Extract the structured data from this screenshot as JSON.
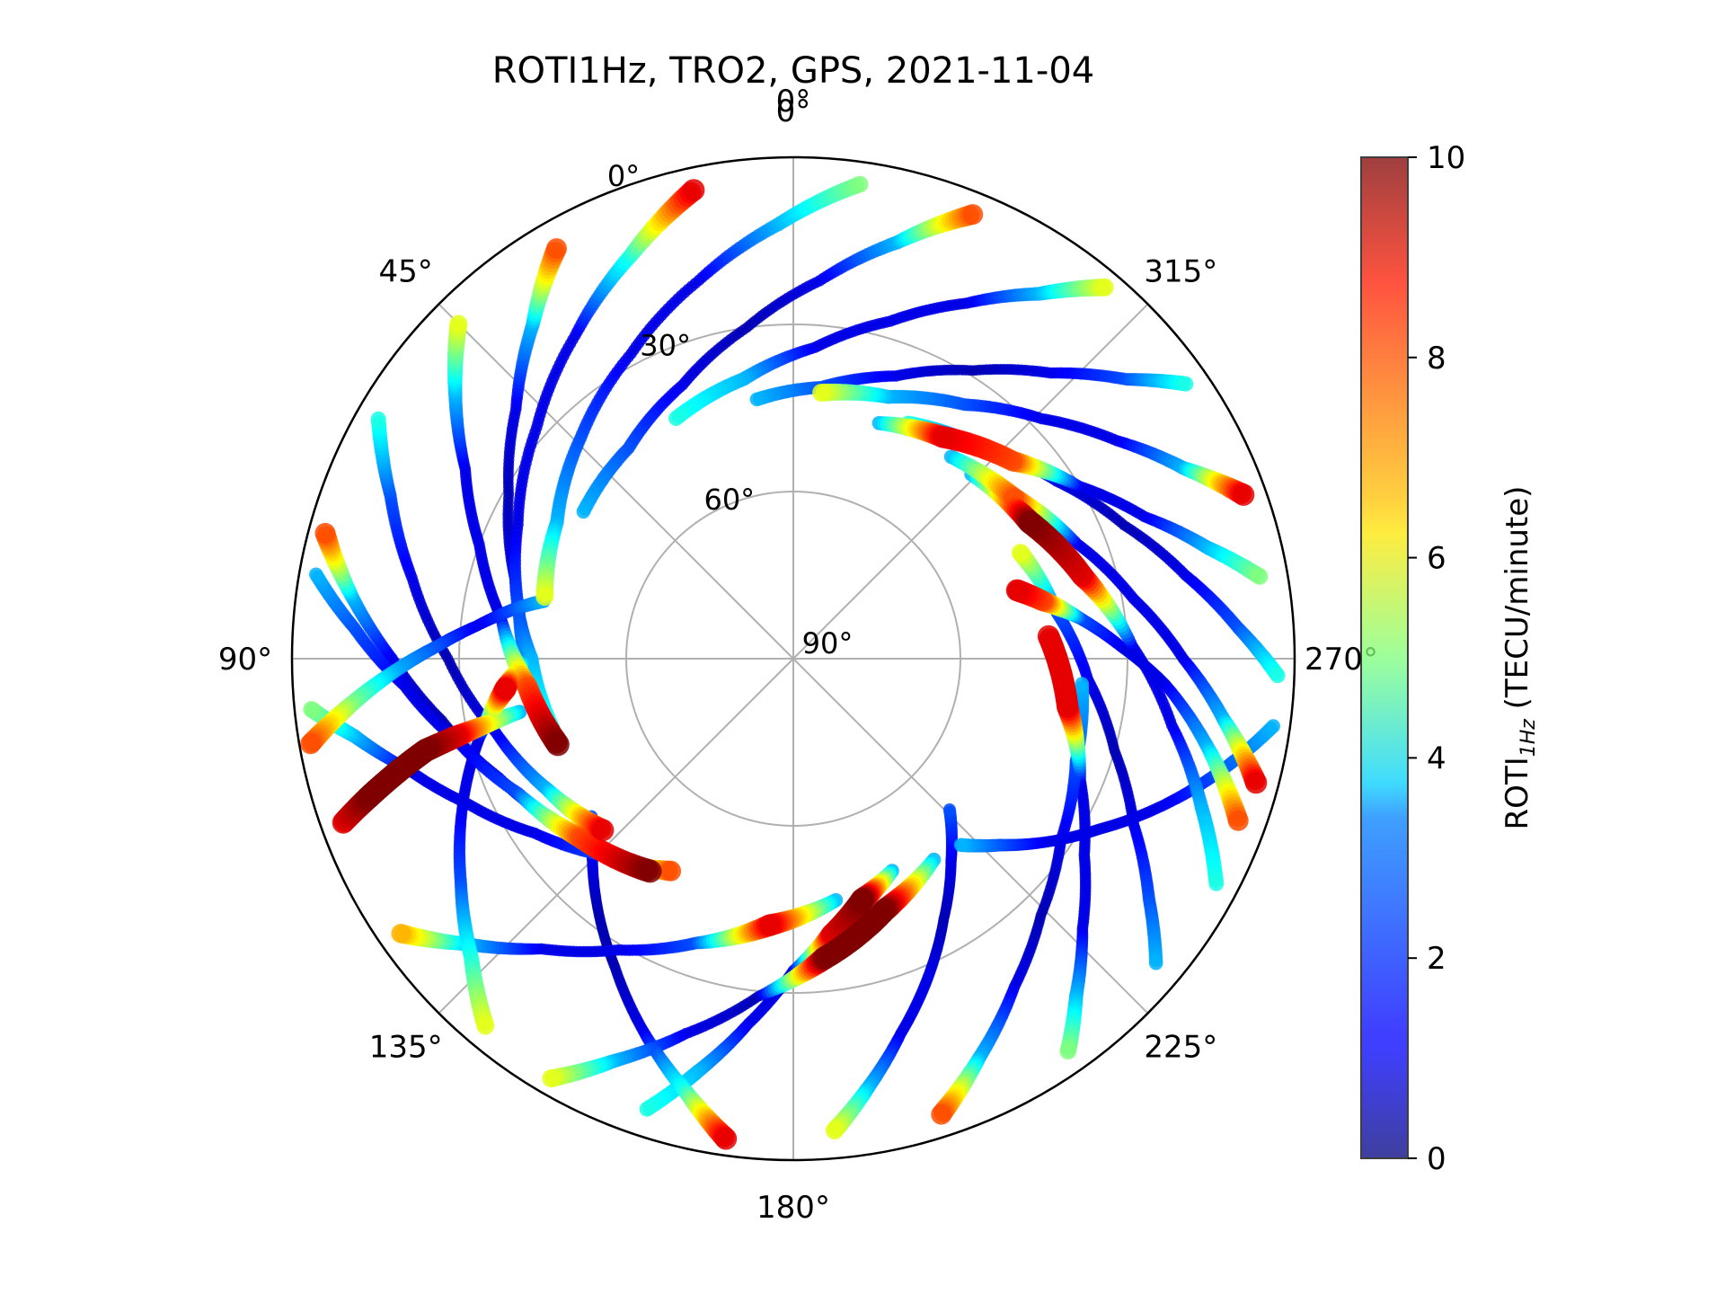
{
  "chart_data": {
    "type": "scatter",
    "projection": "polar",
    "title": "ROTI1Hz, TRO2, GPS, 2021-11-04",
    "azimuth_axis": {
      "direction": "counter-clockwise",
      "zero_location": "top",
      "ticks": [
        0,
        45,
        90,
        135,
        180,
        225,
        270,
        315
      ],
      "tick_labels": [
        "0°",
        "45°",
        "90°",
        "135°",
        "180°",
        "225°",
        "270°",
        "315°"
      ],
      "top_label": "0°"
    },
    "elevation_axis": {
      "range": [
        0,
        90
      ],
      "center_value": 90,
      "ticks": [
        30,
        60,
        90
      ],
      "tick_labels": [
        "30°",
        "60°",
        "90°"
      ],
      "zero_label": "0°"
    },
    "grid": true,
    "colorbar": {
      "label_main": "ROTI",
      "label_sub": "1Hz",
      "label_unit": " (TECU/minute)",
      "colormap": "jet",
      "range": [
        0,
        10
      ],
      "ticks": [
        0,
        2,
        4,
        6,
        8,
        10
      ],
      "tick_labels": [
        "0",
        "2",
        "4",
        "6",
        "8",
        "10"
      ],
      "location": "right"
    },
    "note": "satellite tracks: azimuth (deg), elevation (deg), ROTI value approximated from image",
    "tracks": [
      {
        "az": [
          185,
          190,
          196,
          203,
          210,
          218,
          226
        ],
        "el": [
          5,
          12,
          20,
          28,
          36,
          44,
          51
        ],
        "roti": [
          6,
          3,
          1,
          1,
          0.5,
          1,
          2
        ]
      },
      {
        "az": [
          172,
          166,
          158,
          150,
          142,
          135,
          128
        ],
        "el": [
          3,
          10,
          18,
          26,
          33,
          39,
          44
        ],
        "roti": [
          9,
          4,
          1,
          0.5,
          0.5,
          1,
          2
        ]
      },
      {
        "az": [
          162,
          167,
          173,
          180,
          188,
          196,
          205
        ],
        "el": [
          5,
          14,
          24,
          34,
          40,
          45,
          48
        ],
        "roti": [
          4,
          3,
          1,
          1,
          9,
          10,
          3
        ]
      },
      {
        "az": [
          198,
          205,
          214,
          224,
          236,
          250,
          265
        ],
        "el": [
          4,
          11,
          19,
          26,
          32,
          36,
          38
        ],
        "roti": [
          8,
          3,
          1,
          0.5,
          1,
          2,
          3
        ]
      },
      {
        "az": [
          140,
          133,
          124,
          114,
          104,
          96,
          90
        ],
        "el": [
          4,
          11,
          18,
          25,
          32,
          38,
          42
        ],
        "roti": [
          6,
          4,
          2,
          1,
          1,
          9,
          2
        ]
      },
      {
        "az": [
          110,
          108,
          106,
          104,
          103,
          102,
          101
        ],
        "el": [
          4,
          10,
          16,
          22,
          28,
          34,
          40
        ],
        "roti": [
          9,
          10,
          10,
          10,
          9,
          6,
          3
        ]
      },
      {
        "az": [
          96,
          100,
          106,
          114,
          124,
          136,
          150
        ],
        "el": [
          3,
          10,
          18,
          26,
          34,
          41,
          46
        ],
        "roti": [
          5,
          3,
          1,
          1,
          1,
          2,
          8
        ]
      },
      {
        "az": [
          75,
          82,
          90,
          100,
          112,
          126,
          142
        ],
        "el": [
          3,
          10,
          18,
          26,
          33,
          39,
          43
        ],
        "roti": [
          8,
          3,
          1,
          0.5,
          1,
          2,
          4
        ]
      },
      {
        "az": [
          60,
          68,
          78,
          90,
          104,
          118,
          132
        ],
        "el": [
          4,
          12,
          20,
          28,
          35,
          40,
          44
        ],
        "roti": [
          4,
          2,
          1,
          0.5,
          1,
          3,
          9
        ]
      },
      {
        "az": [
          45,
          52,
          60,
          70,
          82,
          96,
          110
        ],
        "el": [
          5,
          13,
          22,
          30,
          37,
          42,
          45
        ],
        "roti": [
          6,
          3,
          1,
          1,
          1,
          8,
          10
        ]
      },
      {
        "az": [
          30,
          38,
          48,
          60,
          74,
          90,
          106
        ],
        "el": [
          5,
          14,
          23,
          31,
          38,
          43,
          45
        ],
        "roti": [
          8,
          3,
          1,
          0.5,
          1,
          3,
          4
        ]
      },
      {
        "az": [
          12,
          22,
          34,
          48,
          64,
          80,
          96
        ],
        "el": [
          4,
          12,
          20,
          28,
          35,
          40,
          43
        ],
        "roti": [
          9,
          4,
          1,
          1,
          1,
          2,
          3
        ]
      },
      {
        "az": [
          352,
          2,
          14,
          28,
          44,
          60,
          76
        ],
        "el": [
          4,
          12,
          20,
          28,
          35,
          41,
          44
        ],
        "roti": [
          5,
          3,
          1,
          1,
          2,
          3,
          6
        ]
      },
      {
        "az": [
          338,
          346,
          356,
          8,
          22,
          38,
          55
        ],
        "el": [
          4,
          13,
          22,
          30,
          37,
          42,
          44
        ],
        "roti": [
          8,
          3,
          1,
          0.5,
          1,
          2,
          3
        ]
      },
      {
        "az": [
          320,
          326,
          334,
          344,
          356,
          10,
          26
        ],
        "el": [
          3,
          11,
          19,
          27,
          34,
          39,
          42
        ],
        "roti": [
          6,
          3,
          1,
          1,
          1,
          3,
          4
        ]
      },
      {
        "az": [
          305,
          310,
          318,
          328,
          340,
          354,
          8
        ],
        "el": [
          4,
          12,
          21,
          29,
          36,
          41,
          43
        ],
        "roti": [
          4,
          2,
          1,
          0.5,
          1,
          2,
          3
        ]
      },
      {
        "az": [
          290,
          296,
          304,
          314,
          326,
          340,
          354
        ],
        "el": [
          4,
          12,
          20,
          28,
          35,
          40,
          42
        ],
        "roti": [
          9,
          3,
          1,
          1,
          2,
          3,
          6
        ]
      },
      {
        "az": [
          280,
          285,
          292,
          301,
          312,
          326,
          340
        ],
        "el": [
          5,
          13,
          22,
          30,
          37,
          42,
          45
        ],
        "roti": [
          5,
          3,
          1,
          1,
          8,
          9,
          3
        ]
      },
      {
        "az": [
          268,
          274,
          282,
          292,
          304,
          318,
          334
        ],
        "el": [
          3,
          10,
          18,
          26,
          33,
          39,
          43
        ],
        "roti": [
          4,
          2,
          1,
          0.5,
          1,
          2,
          4
        ]
      },
      {
        "az": [
          255,
          262,
          270,
          280,
          292,
          306,
          322
        ],
        "el": [
          4,
          12,
          20,
          28,
          35,
          41,
          44
        ],
        "roti": [
          9,
          3,
          1,
          1,
          1,
          8,
          3
        ]
      },
      {
        "az": [
          242,
          250,
          260,
          272,
          286,
          300,
          316
        ],
        "el": [
          4,
          12,
          21,
          29,
          36,
          41,
          44
        ],
        "roti": [
          4,
          3,
          1,
          1,
          9,
          10,
          3
        ]
      },
      {
        "az": [
          230,
          236,
          244,
          254,
          266,
          280,
          295
        ],
        "el": [
          5,
          13,
          22,
          30,
          37,
          42,
          45
        ],
        "roti": [
          3,
          2,
          1,
          0.5,
          1,
          2,
          6
        ]
      },
      {
        "az": [
          215,
          220,
          227,
          236,
          247,
          260,
          275
        ],
        "el": [
          4,
          11,
          19,
          27,
          34,
          40,
          44
        ],
        "roti": [
          5,
          3,
          1,
          1,
          1,
          9,
          9
        ]
      },
      {
        "az": [
          150,
          156,
          164,
          174,
          186,
          200,
          215
        ],
        "el": [
          3,
          11,
          20,
          29,
          36,
          42,
          46
        ],
        "roti": [
          6,
          3,
          1,
          0.5,
          10,
          10,
          3
        ]
      },
      {
        "az": [
          125,
          131,
          139,
          149,
          161,
          175,
          190
        ],
        "el": [
          4,
          12,
          21,
          29,
          36,
          42,
          46
        ],
        "roti": [
          7,
          3,
          1,
          1,
          2,
          9,
          3
        ]
      },
      {
        "az": [
          100,
          96,
          92,
          88,
          84,
          80,
          77
        ],
        "el": [
          2,
          10,
          18,
          26,
          33,
          39,
          44
        ],
        "roti": [
          8,
          5,
          3,
          2,
          1,
          2,
          3
        ]
      },
      {
        "az": [
          80,
          86,
          94,
          104,
          116,
          130,
          146
        ],
        "el": [
          3,
          11,
          20,
          28,
          35,
          40,
          44
        ],
        "roti": [
          3,
          2,
          1,
          1,
          2,
          8,
          10
        ]
      },
      {
        "az": [
          262,
          255,
          248,
          241,
          234,
          228,
          222
        ],
        "el": [
          3,
          11,
          19,
          27,
          34,
          40,
          45
        ],
        "roti": [
          3,
          2,
          1,
          1,
          1,
          2,
          3
        ]
      },
      {
        "az": [
          250,
          258,
          266,
          272,
          278,
          283,
          287
        ],
        "el": [
          5,
          14,
          23,
          31,
          38,
          44,
          48
        ],
        "roti": [
          8,
          3,
          1,
          1,
          2,
          8,
          9
        ]
      }
    ]
  }
}
